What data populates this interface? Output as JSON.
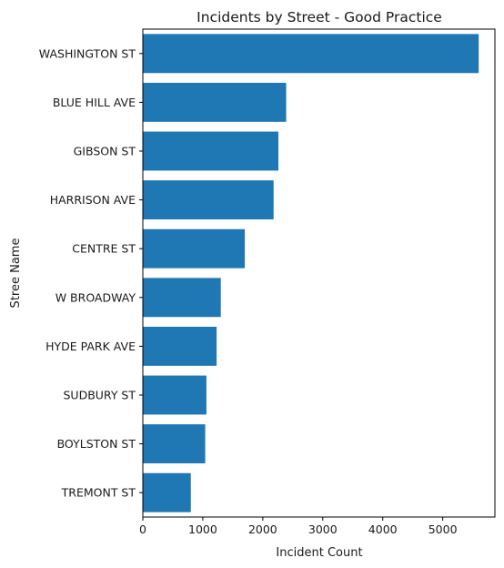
{
  "chart_data": {
    "type": "bar",
    "orientation": "horizontal",
    "title": "Incidents by Street - Good Practice",
    "xlabel": "Incident Count",
    "ylabel": "Stree Name",
    "categories": [
      "WASHINGTON ST",
      "BLUE HILL AVE",
      "GIBSON ST",
      "HARRISON AVE",
      "CENTRE ST",
      "W BROADWAY",
      "HYDE PARK AVE",
      "SUDBURY ST",
      "BOYLSTON ST",
      "TREMONT ST"
    ],
    "values": [
      5600,
      2390,
      2260,
      2180,
      1700,
      1300,
      1230,
      1060,
      1040,
      800
    ],
    "xlim": [
      0,
      5870
    ],
    "xticks": [
      0,
      1000,
      2000,
      3000,
      4000,
      5000
    ],
    "bar_color": "#1f77b4",
    "grid": false,
    "legend": "none"
  }
}
